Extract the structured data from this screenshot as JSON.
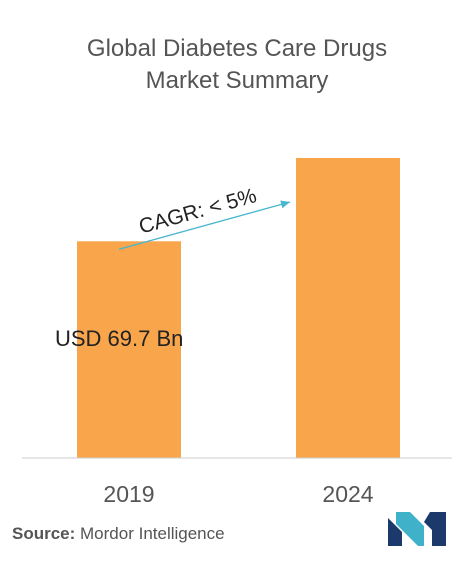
{
  "title": {
    "line1": "Global Diabetes Care Drugs",
    "line2": "Market Summary"
  },
  "chart_data": {
    "type": "bar",
    "title": "Global Diabetes Care Drugs Market Summary",
    "categories": [
      "2019",
      "2024"
    ],
    "values": [
      69.7,
      96.5
    ],
    "ylim": [
      0,
      110
    ],
    "grid": false,
    "colors": {
      "bar": "#F9A54B",
      "arrow": "#48B6CF",
      "axis": "#555555",
      "text": "#222222"
    },
    "annotations": {
      "value_label": "USD 69.7 Bn",
      "cagr_label": "CAGR: < 5%"
    }
  },
  "source": {
    "prefix": "Source:",
    "text": " Mordor Intelligence"
  },
  "logo": {
    "icon": "mordor-intelligence-logo-icon",
    "colors": [
      "#1B3A6B",
      "#3FB1C9"
    ]
  }
}
